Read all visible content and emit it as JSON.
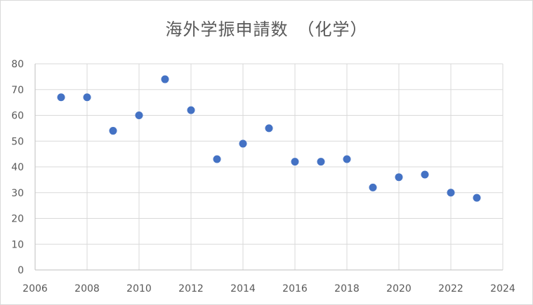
{
  "chart_data": {
    "type": "scatter",
    "title": "海外学振申請数　（化学）",
    "xlabel": "",
    "ylabel": "",
    "xlim": [
      2006,
      2024
    ],
    "ylim": [
      0,
      80
    ],
    "xticks": [
      2006,
      2008,
      2010,
      2012,
      2014,
      2016,
      2018,
      2020,
      2022,
      2024
    ],
    "yticks": [
      0,
      10,
      20,
      30,
      40,
      50,
      60,
      70,
      80
    ],
    "grid": true,
    "legend": "none",
    "marker_color": "#4472c4",
    "series": [
      {
        "x": [
          2007,
          2008,
          2009,
          2010,
          2011,
          2012,
          2013,
          2014,
          2015,
          2016,
          2017,
          2018,
          2019,
          2020,
          2021,
          2022,
          2023
        ],
        "y": [
          67,
          67,
          54,
          60,
          74,
          62,
          43,
          49,
          55,
          42,
          42,
          43,
          32,
          36,
          37,
          30,
          28
        ]
      }
    ]
  }
}
